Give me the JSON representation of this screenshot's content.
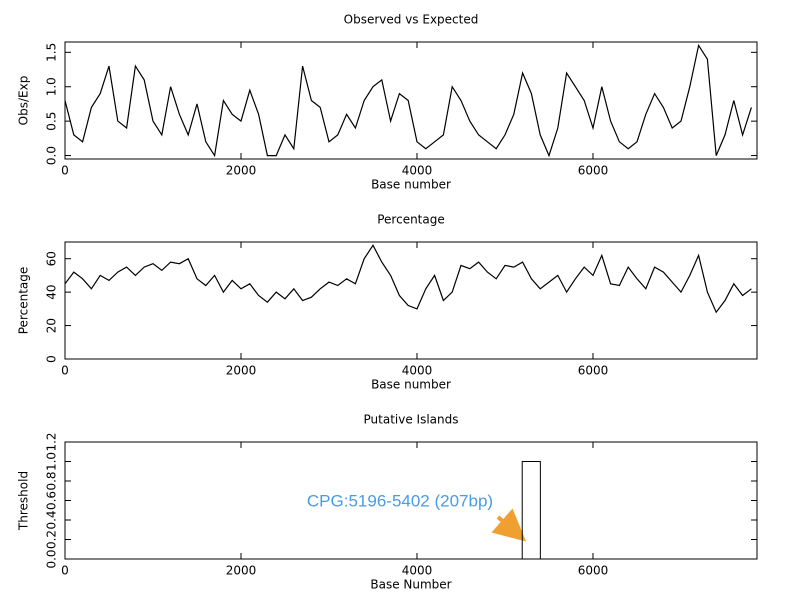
{
  "chart_data": [
    {
      "type": "line",
      "title": "Observed vs Expected",
      "xlabel": "Base number",
      "ylabel": "Obs/Exp",
      "xlim": [
        0,
        7864
      ],
      "xticks": [
        0,
        2000,
        4000,
        6000
      ],
      "ylim": [
        -0.05,
        1.65
      ],
      "yticks": [
        {
          "value": 0,
          "label": "0.0"
        },
        {
          "value": 0.5,
          "label": "0.5"
        },
        {
          "value": 1,
          "label": "1.0"
        },
        {
          "value": 1.5,
          "label": "1.5"
        }
      ],
      "color": "#000000",
      "x": [
        0,
        100,
        200,
        300,
        400,
        500,
        600,
        700,
        800,
        900,
        1000,
        1100,
        1200,
        1300,
        1400,
        1500,
        1600,
        1700,
        1800,
        1900,
        2000,
        2100,
        2200,
        2300,
        2400,
        2500,
        2600,
        2700,
        2800,
        2900,
        3000,
        3100,
        3200,
        3300,
        3400,
        3500,
        3600,
        3700,
        3800,
        3900,
        4000,
        4100,
        4200,
        4300,
        4400,
        4500,
        4600,
        4700,
        4800,
        4900,
        5000,
        5100,
        5200,
        5300,
        5400,
        5500,
        5600,
        5700,
        5800,
        5900,
        6000,
        6100,
        6200,
        6300,
        6400,
        6500,
        6600,
        6700,
        6800,
        6900,
        7000,
        7100,
        7200,
        7300,
        7400,
        7500,
        7600,
        7700,
        7800
      ],
      "values": [
        0.8,
        0.3,
        0.2,
        0.7,
        0.9,
        1.3,
        0.5,
        0.4,
        1.3,
        1.1,
        0.5,
        0.3,
        1.0,
        0.6,
        0.3,
        0.75,
        0.2,
        0.0,
        0.8,
        0.6,
        0.5,
        0.95,
        0.6,
        0.0,
        0.0,
        0.3,
        0.1,
        1.3,
        0.8,
        0.7,
        0.2,
        0.3,
        0.6,
        0.4,
        0.8,
        1.0,
        1.1,
        0.5,
        0.9,
        0.8,
        0.2,
        0.1,
        0.2,
        0.3,
        1.0,
        0.8,
        0.5,
        0.3,
        0.2,
        0.1,
        0.3,
        0.6,
        1.2,
        0.9,
        0.3,
        0.0,
        0.4,
        1.2,
        1.0,
        0.8,
        0.4,
        1.0,
        0.5,
        0.2,
        0.1,
        0.2,
        0.6,
        0.9,
        0.7,
        0.4,
        0.5,
        1.0,
        1.6,
        1.4,
        0.0,
        0.3,
        0.8,
        0.3,
        0.7
      ]
    },
    {
      "type": "line",
      "title": "Percentage",
      "xlabel": "Base number",
      "ylabel": "Percentage",
      "xlim": [
        0,
        7864
      ],
      "xticks": [
        0,
        2000,
        4000,
        6000
      ],
      "ylim": [
        0,
        70
      ],
      "yticks": [
        0,
        20,
        40,
        60
      ],
      "color": "#000000",
      "x": [
        0,
        100,
        200,
        300,
        400,
        500,
        600,
        700,
        800,
        900,
        1000,
        1100,
        1200,
        1300,
        1400,
        1500,
        1600,
        1700,
        1800,
        1900,
        2000,
        2100,
        2200,
        2300,
        2400,
        2500,
        2600,
        2700,
        2800,
        2900,
        3000,
        3100,
        3200,
        3300,
        3400,
        3500,
        3600,
        3700,
        3800,
        3900,
        4000,
        4100,
        4200,
        4300,
        4400,
        4500,
        4600,
        4700,
        4800,
        4900,
        5000,
        5100,
        5200,
        5300,
        5400,
        5500,
        5600,
        5700,
        5800,
        5900,
        6000,
        6100,
        6200,
        6300,
        6400,
        6500,
        6600,
        6700,
        6800,
        6900,
        7000,
        7100,
        7200,
        7300,
        7400,
        7500,
        7600,
        7700,
        7800
      ],
      "values": [
        45,
        52,
        48,
        42,
        50,
        47,
        52,
        55,
        50,
        55,
        57,
        53,
        58,
        57,
        60,
        48,
        44,
        50,
        40,
        47,
        42,
        45,
        38,
        34,
        40,
        36,
        42,
        35,
        37,
        42,
        46,
        44,
        48,
        45,
        60,
        68,
        58,
        50,
        38,
        32,
        30,
        42,
        50,
        35,
        40,
        56,
        54,
        58,
        52,
        48,
        56,
        55,
        58,
        48,
        42,
        46,
        50,
        40,
        48,
        55,
        50,
        62,
        45,
        44,
        55,
        48,
        42,
        55,
        52,
        46,
        40,
        50,
        62,
        40,
        28,
        35,
        45,
        38,
        42
      ]
    },
    {
      "type": "interval",
      "title": "Putative Islands",
      "xlabel": "Base Number",
      "ylabel": "Threshold",
      "xlim": [
        0,
        7864
      ],
      "xticks": [
        0,
        2000,
        4000,
        6000
      ],
      "ylim": [
        0,
        1.2
      ],
      "yticks": [
        {
          "value": 0,
          "label": "0.0"
        },
        {
          "value": 0.2,
          "label": "0.2"
        },
        {
          "value": 0.4,
          "label": "0.4"
        },
        {
          "value": 0.6,
          "label": "0.6"
        },
        {
          "value": 0.8,
          "label": "0.8"
        },
        {
          "value": 1,
          "label": "1.0"
        },
        {
          "value": 1.2,
          "label": "1.2"
        }
      ],
      "color": "#000000",
      "starts": [
        5196
      ],
      "ends": [
        5402
      ],
      "values": [
        1
      ],
      "annotation": "CPG:5196-5402 (207bp)"
    }
  ]
}
